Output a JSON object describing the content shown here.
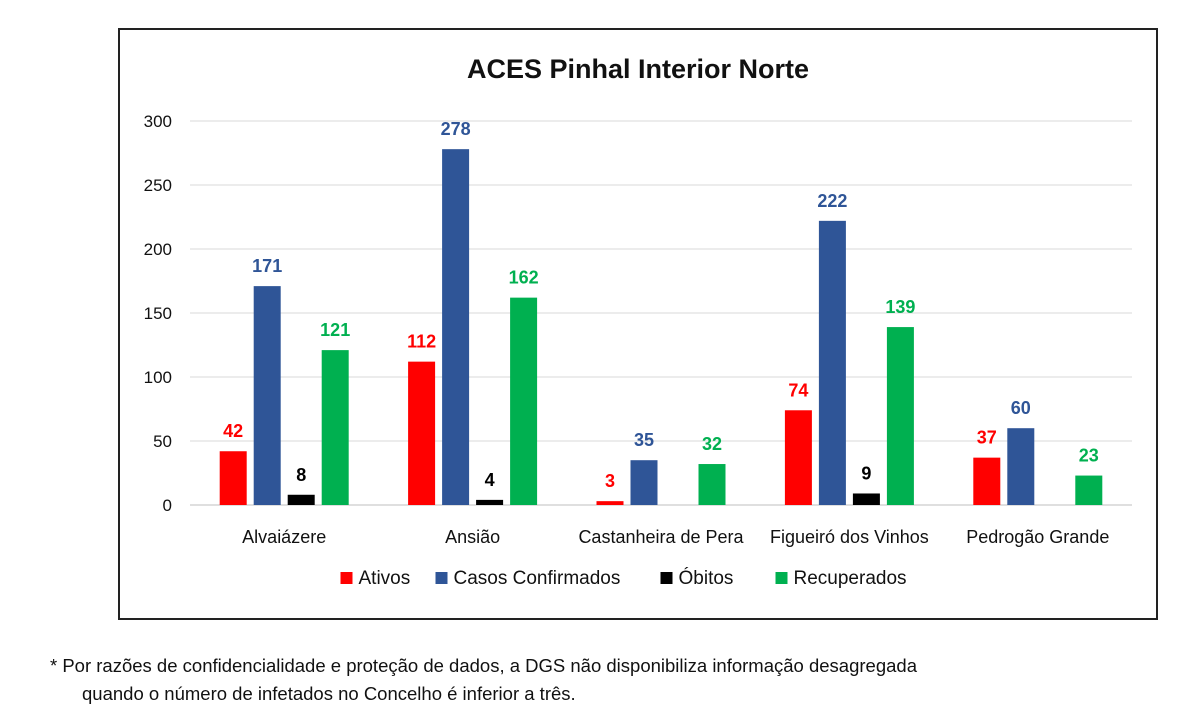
{
  "chart_data": {
    "type": "bar",
    "title": "ACES Pinhal Interior Norte",
    "categories": [
      "Alvaiázere",
      "Ansião",
      "Castanheira de Pera",
      "Figueiró dos Vinhos",
      "Pedrogão Grande"
    ],
    "series": [
      {
        "name": "Ativos",
        "color": "#ff0000",
        "values": [
          42,
          112,
          3,
          74,
          37
        ]
      },
      {
        "name": "Casos Confirmados",
        "color": "#2f5597",
        "values": [
          171,
          278,
          35,
          222,
          60
        ]
      },
      {
        "name": "Óbitos",
        "color": "#000000",
        "values": [
          8,
          4,
          null,
          9,
          null
        ]
      },
      {
        "name": "Recuperados",
        "color": "#00b050",
        "values": [
          121,
          162,
          32,
          139,
          23
        ]
      }
    ],
    "ylim": [
      0,
      300
    ],
    "yticks": [
      0,
      50,
      100,
      150,
      200,
      250,
      300
    ],
    "grid": true,
    "legend_position": "bottom"
  },
  "footnote": {
    "line1": "* Por razões de confidencialidade e proteção de dados, a DGS não disponibiliza informação desagregada",
    "line2": "quando o número de infetados no Concelho é inferior a três."
  }
}
